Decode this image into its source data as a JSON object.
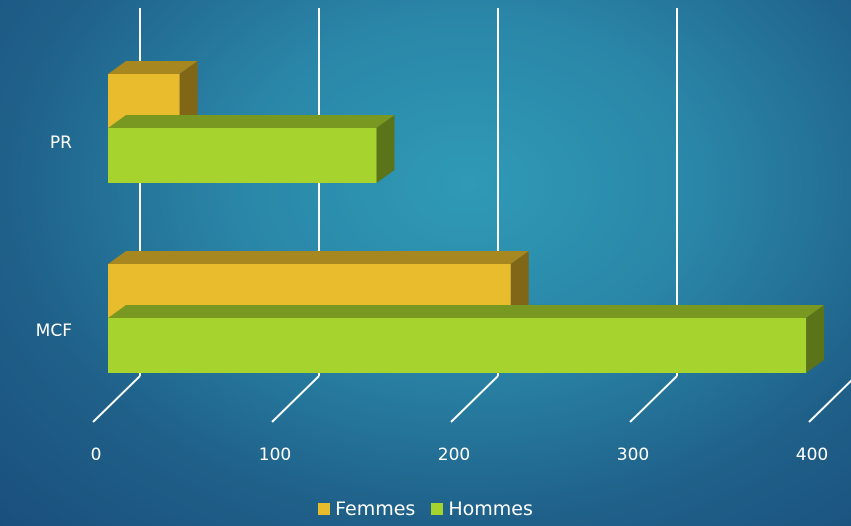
{
  "chart_data": {
    "type": "bar",
    "orientation": "horizontal",
    "three_d": true,
    "categories": [
      "PR",
      "MCF"
    ],
    "series": [
      {
        "name": "Femmes",
        "values": [
          40,
          225
        ],
        "color": "#e8bc2c"
      },
      {
        "name": "Hommes",
        "values": [
          150,
          390
        ],
        "color": "#a7d32e"
      }
    ],
    "x_ticks": [
      "0",
      "100",
      "200",
      "300",
      "400"
    ],
    "xlim": [
      0,
      400
    ],
    "grid": true,
    "legend_position": "bottom",
    "title": "",
    "xlabel": "",
    "ylabel": ""
  }
}
